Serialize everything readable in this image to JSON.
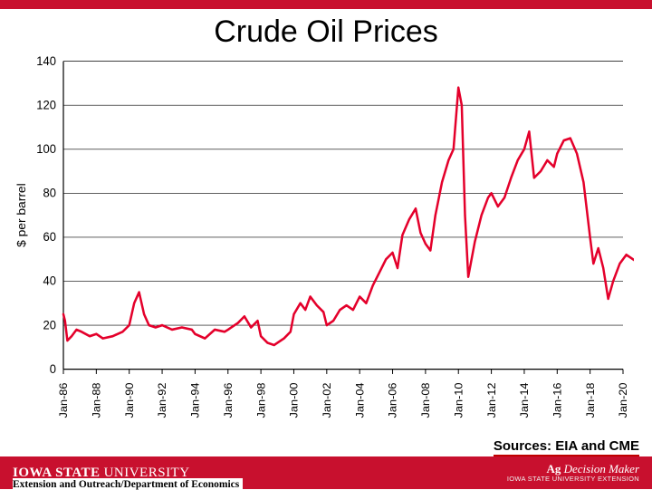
{
  "title": "Crude Oil Prices",
  "sources_label": "Sources: EIA and CME",
  "university_name_bold": "IOWA STATE",
  "university_name_light": "UNIVERSITY",
  "dept_label": "Extension and Outreach/Department of Economics",
  "adm_brand_ag": "Ag",
  "adm_brand_rest": " Decision Maker",
  "adm_sub": "IOWA STATE UNIVERSITY EXTENSION",
  "colors": {
    "top_bar": "#c8102e",
    "footer_bar": "#c8102e",
    "line": "#e4002b",
    "gridline": "#000000",
    "axis": "#000000",
    "sources_underline": "#c00000",
    "background": "#ffffff"
  },
  "chart": {
    "type": "line",
    "ylabel": "$ per barrel",
    "label_fontsize": 13,
    "tick_fontsize": 13,
    "ylim": [
      0,
      140
    ],
    "ytick_step": 20,
    "yticks": [
      0,
      20,
      40,
      60,
      80,
      100,
      120,
      140
    ],
    "x_categories": [
      "Jan-86",
      "Jan-88",
      "Jan-90",
      "Jan-92",
      "Jan-94",
      "Jan-96",
      "Jan-98",
      "Jan-00",
      "Jan-02",
      "Jan-04",
      "Jan-06",
      "Jan-08",
      "Jan-10",
      "Jan-12",
      "Jan-14",
      "Jan-16",
      "Jan-18",
      "Jan-20"
    ],
    "line_width": 2.5,
    "grid_on": true,
    "grid_width": 0.6,
    "series": [
      {
        "x": 0.0,
        "y": 25
      },
      {
        "x": 0.05,
        "y": 22
      },
      {
        "x": 0.12,
        "y": 13
      },
      {
        "x": 0.25,
        "y": 15
      },
      {
        "x": 0.4,
        "y": 18
      },
      {
        "x": 0.55,
        "y": 17
      },
      {
        "x": 0.8,
        "y": 15
      },
      {
        "x": 1.0,
        "y": 16
      },
      {
        "x": 1.2,
        "y": 14
      },
      {
        "x": 1.5,
        "y": 15
      },
      {
        "x": 1.8,
        "y": 17
      },
      {
        "x": 2.0,
        "y": 20
      },
      {
        "x": 2.15,
        "y": 30
      },
      {
        "x": 2.3,
        "y": 35
      },
      {
        "x": 2.45,
        "y": 25
      },
      {
        "x": 2.6,
        "y": 20
      },
      {
        "x": 2.8,
        "y": 19
      },
      {
        "x": 3.0,
        "y": 20
      },
      {
        "x": 3.3,
        "y": 18
      },
      {
        "x": 3.6,
        "y": 19
      },
      {
        "x": 3.9,
        "y": 18
      },
      {
        "x": 4.0,
        "y": 16
      },
      {
        "x": 4.3,
        "y": 14
      },
      {
        "x": 4.6,
        "y": 18
      },
      {
        "x": 4.9,
        "y": 17
      },
      {
        "x": 5.0,
        "y": 18
      },
      {
        "x": 5.3,
        "y": 21
      },
      {
        "x": 5.5,
        "y": 24
      },
      {
        "x": 5.7,
        "y": 19
      },
      {
        "x": 5.9,
        "y": 22
      },
      {
        "x": 6.0,
        "y": 15
      },
      {
        "x": 6.2,
        "y": 12
      },
      {
        "x": 6.4,
        "y": 11
      },
      {
        "x": 6.7,
        "y": 14
      },
      {
        "x": 6.9,
        "y": 17
      },
      {
        "x": 7.0,
        "y": 25
      },
      {
        "x": 7.2,
        "y": 30
      },
      {
        "x": 7.35,
        "y": 27
      },
      {
        "x": 7.5,
        "y": 33
      },
      {
        "x": 7.7,
        "y": 29
      },
      {
        "x": 7.9,
        "y": 26
      },
      {
        "x": 8.0,
        "y": 20
      },
      {
        "x": 8.2,
        "y": 22
      },
      {
        "x": 8.4,
        "y": 27
      },
      {
        "x": 8.6,
        "y": 29
      },
      {
        "x": 8.8,
        "y": 27
      },
      {
        "x": 9.0,
        "y": 33
      },
      {
        "x": 9.2,
        "y": 30
      },
      {
        "x": 9.4,
        "y": 38
      },
      {
        "x": 9.6,
        "y": 44
      },
      {
        "x": 9.8,
        "y": 50
      },
      {
        "x": 10.0,
        "y": 53
      },
      {
        "x": 10.15,
        "y": 46
      },
      {
        "x": 10.3,
        "y": 61
      },
      {
        "x": 10.5,
        "y": 68
      },
      {
        "x": 10.7,
        "y": 73
      },
      {
        "x": 10.85,
        "y": 62
      },
      {
        "x": 11.0,
        "y": 57
      },
      {
        "x": 11.15,
        "y": 54
      },
      {
        "x": 11.3,
        "y": 70
      },
      {
        "x": 11.5,
        "y": 85
      },
      {
        "x": 11.7,
        "y": 95
      },
      {
        "x": 11.85,
        "y": 100
      },
      {
        "x": 12.0,
        "y": 128
      },
      {
        "x": 12.1,
        "y": 120
      },
      {
        "x": 12.2,
        "y": 70
      },
      {
        "x": 12.3,
        "y": 42
      },
      {
        "x": 12.5,
        "y": 58
      },
      {
        "x": 12.7,
        "y": 70
      },
      {
        "x": 12.9,
        "y": 78
      },
      {
        "x": 13.0,
        "y": 80
      },
      {
        "x": 13.2,
        "y": 74
      },
      {
        "x": 13.4,
        "y": 78
      },
      {
        "x": 13.6,
        "y": 87
      },
      {
        "x": 13.8,
        "y": 95
      },
      {
        "x": 14.0,
        "y": 100
      },
      {
        "x": 14.15,
        "y": 108
      },
      {
        "x": 14.3,
        "y": 87
      },
      {
        "x": 14.5,
        "y": 90
      },
      {
        "x": 14.7,
        "y": 95
      },
      {
        "x": 14.9,
        "y": 92
      },
      {
        "x": 15.0,
        "y": 98
      },
      {
        "x": 15.2,
        "y": 104
      },
      {
        "x": 15.4,
        "y": 105
      },
      {
        "x": 15.6,
        "y": 98
      },
      {
        "x": 15.8,
        "y": 85
      },
      {
        "x": 16.0,
        "y": 60
      },
      {
        "x": 16.1,
        "y": 48
      },
      {
        "x": 16.25,
        "y": 55
      },
      {
        "x": 16.4,
        "y": 46
      },
      {
        "x": 16.55,
        "y": 32
      },
      {
        "x": 16.7,
        "y": 40
      },
      {
        "x": 16.9,
        "y": 48
      },
      {
        "x": 17.1,
        "y": 52
      },
      {
        "x": 17.4,
        "y": 49
      },
      {
        "x": 17.7,
        "y": 50
      },
      {
        "x": 18.0,
        "y": 52
      }
    ]
  }
}
